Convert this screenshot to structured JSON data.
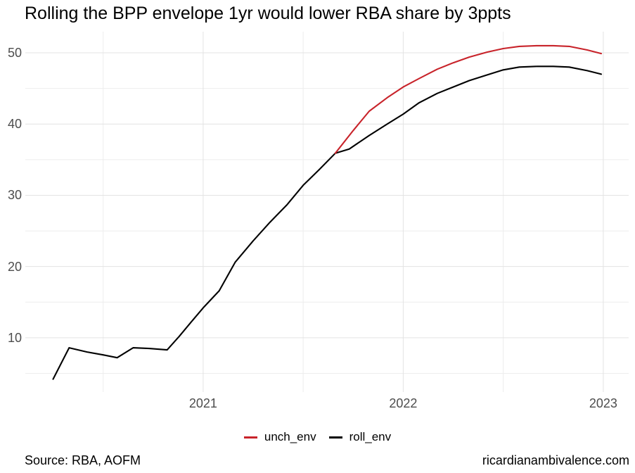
{
  "title": "Rolling the BPP envelope 1yr would lower RBA share by 3ppts",
  "footer": {
    "source": "Source: RBA, AOFM",
    "site": "ricardianambivalence.com"
  },
  "colors": {
    "unch_env": "#c8232a",
    "roll_env": "#000000",
    "tick_label": "#4d4d4d",
    "grid_major": "#e3e3e3",
    "grid_minor": "#ededed"
  },
  "chart_data": {
    "type": "line",
    "title": "Rolling the BPP envelope 1yr would lower RBA share by 3ppts",
    "xlabel": "",
    "ylabel": "",
    "grid": true,
    "legend_position": "bottom",
    "x_axis": {
      "range": [
        2020.111,
        2023.127
      ],
      "ticks": [
        2021,
        2022,
        2023
      ],
      "tick_labels": [
        "2021",
        "2022",
        "2023"
      ],
      "minor_ticks": [
        2020.5,
        2021.5,
        2022.5
      ]
    },
    "y_axis": {
      "range": [
        2.38,
        52.97
      ],
      "ticks": [
        10,
        20,
        30,
        40,
        50
      ],
      "tick_labels": [
        "10",
        "20",
        "30",
        "40",
        "50"
      ],
      "minor_ticks": [
        5,
        15,
        25,
        35,
        45
      ]
    },
    "legend": [
      {
        "label": "unch_env",
        "color": "#c8232a"
      },
      {
        "label": "roll_env",
        "color": "#000000"
      }
    ],
    "series": [
      {
        "name": "roll_env",
        "color": "#000000",
        "points": [
          [
            2020.25,
            4.2
          ],
          [
            2020.33,
            8.6
          ],
          [
            2020.42,
            8.0
          ],
          [
            2020.5,
            7.6
          ],
          [
            2020.57,
            7.2
          ],
          [
            2020.65,
            8.6
          ],
          [
            2020.73,
            8.5
          ],
          [
            2020.82,
            8.3
          ],
          [
            2020.88,
            10.2
          ],
          [
            2020.94,
            12.2
          ],
          [
            2021.0,
            14.2
          ],
          [
            2021.08,
            16.6
          ],
          [
            2021.16,
            20.6
          ],
          [
            2021.25,
            23.6
          ],
          [
            2021.33,
            26.1
          ],
          [
            2021.42,
            28.7
          ],
          [
            2021.5,
            31.4
          ],
          [
            2021.58,
            33.6
          ],
          [
            2021.66,
            35.9
          ],
          [
            2021.73,
            36.5
          ],
          [
            2021.83,
            38.4
          ],
          [
            2021.92,
            40.0
          ],
          [
            2022.0,
            41.4
          ],
          [
            2022.08,
            43.0
          ],
          [
            2022.17,
            44.3
          ],
          [
            2022.25,
            45.2
          ],
          [
            2022.33,
            46.1
          ],
          [
            2022.42,
            46.9
          ],
          [
            2022.5,
            47.6
          ],
          [
            2022.58,
            48.0
          ],
          [
            2022.67,
            48.1
          ],
          [
            2022.75,
            48.1
          ],
          [
            2022.83,
            48.0
          ],
          [
            2022.92,
            47.5
          ],
          [
            2022.99,
            47.0
          ]
        ]
      },
      {
        "name": "unch_env",
        "color": "#c8232a",
        "points": [
          [
            2021.66,
            35.9
          ],
          [
            2021.75,
            39.1
          ],
          [
            2021.83,
            41.8
          ],
          [
            2021.92,
            43.7
          ],
          [
            2022.0,
            45.2
          ],
          [
            2022.08,
            46.4
          ],
          [
            2022.17,
            47.7
          ],
          [
            2022.25,
            48.6
          ],
          [
            2022.33,
            49.4
          ],
          [
            2022.42,
            50.1
          ],
          [
            2022.5,
            50.6
          ],
          [
            2022.58,
            50.9
          ],
          [
            2022.67,
            51.0
          ],
          [
            2022.75,
            51.0
          ],
          [
            2022.83,
            50.9
          ],
          [
            2022.92,
            50.4
          ],
          [
            2022.99,
            49.9
          ]
        ]
      }
    ]
  }
}
